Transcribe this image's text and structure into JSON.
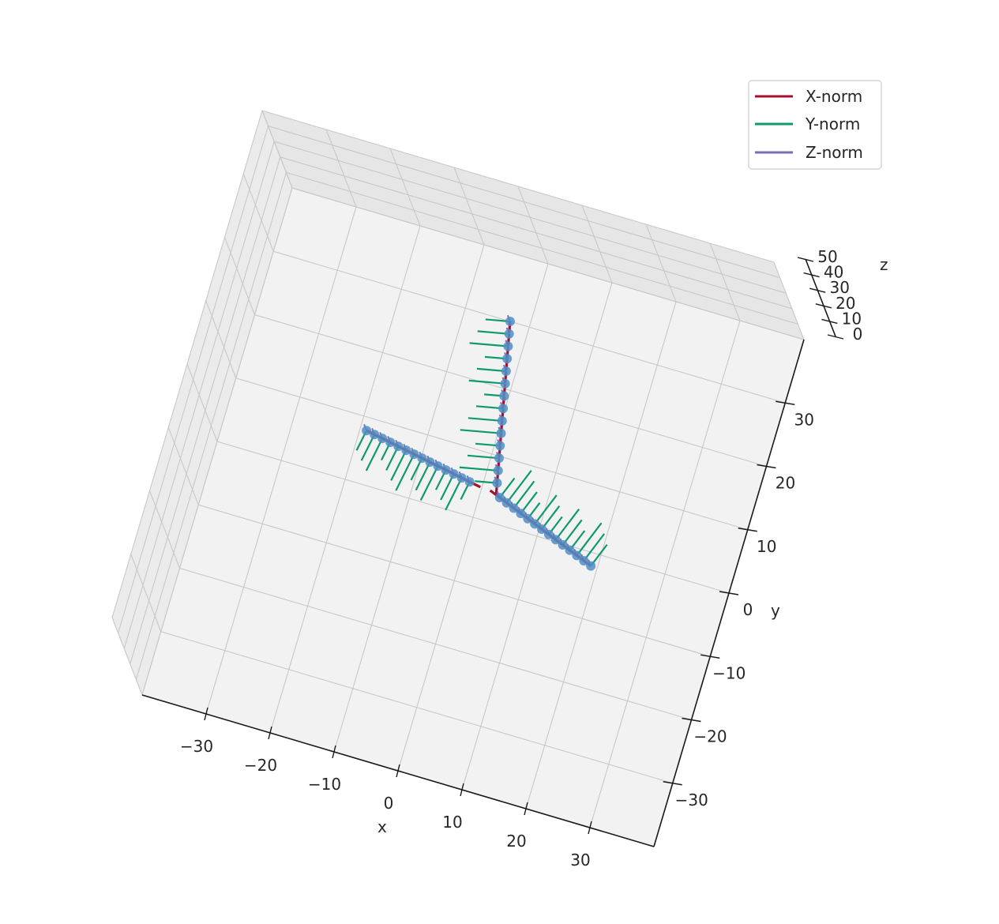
{
  "chart_data": {
    "type": "quiver3d",
    "title": "",
    "xlabel": "x",
    "ylabel": "y",
    "zlabel": "z",
    "xlim": [
      -40,
      40
    ],
    "ylim": [
      -40,
      40
    ],
    "zlim": [
      0,
      50
    ],
    "x_ticks": [
      -30,
      -20,
      -10,
      0,
      10,
      20,
      30
    ],
    "y_ticks": [
      -30,
      -20,
      -10,
      0,
      10,
      20,
      30
    ],
    "z_ticks": [
      0,
      10,
      20,
      30,
      40,
      50
    ],
    "x_tick_labels": [
      "−30",
      "−20",
      "−10",
      "0",
      "10",
      "20",
      "30"
    ],
    "y_tick_labels": [
      "−30",
      "−20",
      "−10",
      "0",
      "10",
      "20",
      "30"
    ],
    "z_tick_labels": [
      "0",
      "10",
      "20",
      "30",
      "40",
      "50"
    ],
    "grid": true,
    "legend_position": "top-right",
    "legend": [
      {
        "name": "X-norm",
        "color": "#a50f2d"
      },
      {
        "name": "Y-norm",
        "color": "#0f9a6e"
      },
      {
        "name": "Z-norm",
        "color": "#7b6db5"
      }
    ],
    "marker_color": "#4f8fc8",
    "arms": [
      {
        "start": [
          -2,
          5
        ],
        "end": [
          -19,
          8
        ],
        "count": 14
      },
      {
        "start": [
          2,
          6
        ],
        "end": [
          -3,
          30
        ],
        "count": 14
      },
      {
        "start": [
          3,
          4
        ],
        "end": [
          19,
          -2
        ],
        "count": 14
      }
    ]
  }
}
